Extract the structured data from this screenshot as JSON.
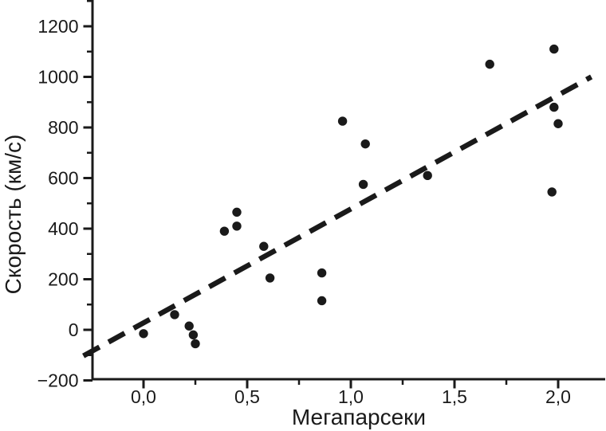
{
  "figure": {
    "background": "#ffffff",
    "ink_color": "#1a1a1a"
  },
  "chart_data": {
    "type": "scatter",
    "title": "",
    "xlabel": "Мегапарсеки",
    "ylabel": "Скорость (км/с)",
    "xlim": [
      -0.29,
      2.22
    ],
    "ylim": [
      -200,
      1300
    ],
    "grid": "off",
    "legend": "none",
    "x_major_ticks": [
      0,
      0.5,
      1,
      1.5,
      2
    ],
    "x_tick_labels": [
      "0,0",
      "0,5",
      "1,0",
      "1,5",
      "2,0"
    ],
    "x_minor_ticks": [
      0.25,
      0.75,
      1.25,
      1.75
    ],
    "y_major_ticks": [
      -200,
      0,
      200,
      400,
      600,
      800,
      1000,
      1200
    ],
    "y_tick_labels": [
      "−200",
      "0",
      "200",
      "400",
      "600",
      "800",
      "1000",
      "1200"
    ],
    "y_minor_ticks": [
      -100,
      100,
      300,
      500,
      700,
      900,
      1100,
      1300
    ],
    "points": [
      {
        "x": 0.0,
        "y": -15
      },
      {
        "x": 0.15,
        "y": 60
      },
      {
        "x": 0.22,
        "y": 15
      },
      {
        "x": 0.24,
        "y": -20
      },
      {
        "x": 0.25,
        "y": -55
      },
      {
        "x": 0.39,
        "y": 390
      },
      {
        "x": 0.45,
        "y": 465
      },
      {
        "x": 0.45,
        "y": 410
      },
      {
        "x": 0.58,
        "y": 330
      },
      {
        "x": 0.61,
        "y": 205
      },
      {
        "x": 0.86,
        "y": 225
      },
      {
        "x": 0.86,
        "y": 115
      },
      {
        "x": 0.96,
        "y": 825
      },
      {
        "x": 1.07,
        "y": 735
      },
      {
        "x": 1.06,
        "y": 575
      },
      {
        "x": 1.37,
        "y": 610
      },
      {
        "x": 1.67,
        "y": 1050
      },
      {
        "x": 1.98,
        "y": 1110
      },
      {
        "x": 1.98,
        "y": 880
      },
      {
        "x": 2.0,
        "y": 815
      },
      {
        "x": 1.97,
        "y": 545
      }
    ],
    "trend_line": {
      "style": "dashed",
      "x1": -0.29,
      "y1": -103,
      "x2": 2.16,
      "y2": 1000
    }
  }
}
